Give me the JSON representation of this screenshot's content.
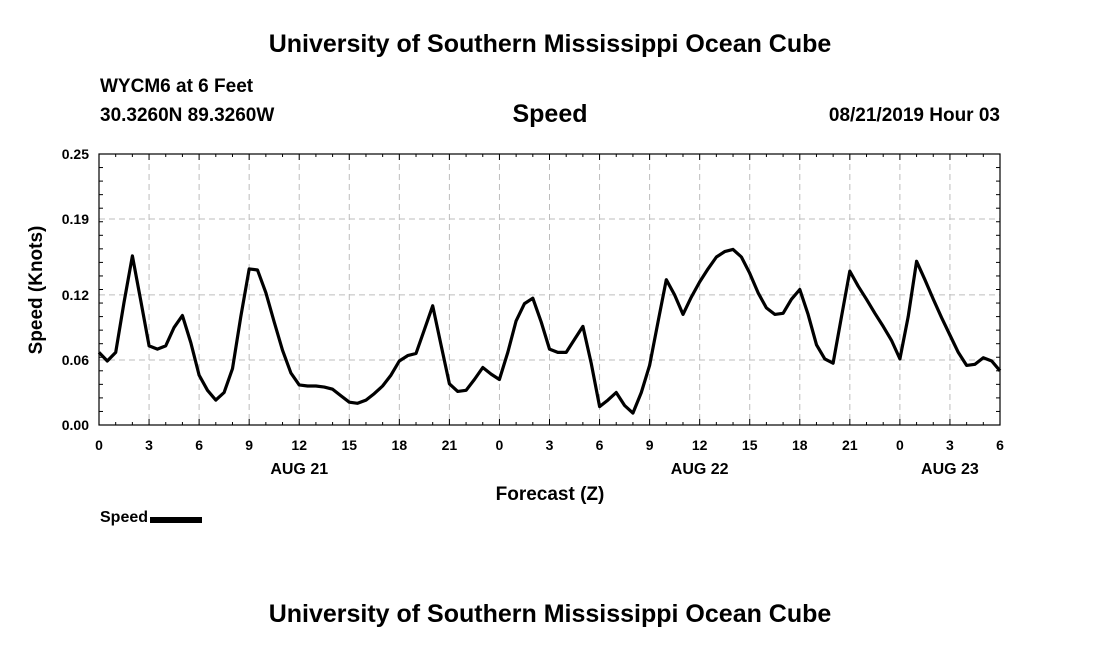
{
  "header": {
    "title": "University of Southern Mississippi Ocean Cube",
    "station": "WYCM6 at 6 Feet",
    "coords": "30.3260N 89.3260W",
    "variable": "Speed",
    "datetime": "08/21/2019 Hour 03"
  },
  "footer": {
    "title": "University of Southern Mississippi Ocean Cube"
  },
  "legend": {
    "label": "Speed",
    "color": "#000000"
  },
  "chart_data": {
    "type": "line",
    "title": "Speed",
    "xlabel": "Forecast (Z)",
    "ylabel": "Speed (Knots)",
    "xlim": [
      0,
      54
    ],
    "ylim": [
      0,
      0.25
    ],
    "grid": true,
    "xticks": [
      0,
      3,
      6,
      9,
      12,
      15,
      18,
      21,
      24,
      27,
      30,
      33,
      36,
      39,
      42,
      45,
      48,
      51,
      54
    ],
    "xtick_labels": [
      "0",
      "3",
      "6",
      "9",
      "12",
      "15",
      "18",
      "21",
      "0",
      "3",
      "6",
      "9",
      "12",
      "15",
      "18",
      "21",
      "0",
      "3",
      "6"
    ],
    "day_labels": [
      {
        "x": 12,
        "label": "AUG 21"
      },
      {
        "x": 36,
        "label": "AUG 22"
      },
      {
        "x": 51,
        "label": "AUG 23"
      }
    ],
    "yticks": [
      0,
      0.06,
      0.12,
      0.19,
      0.25
    ],
    "ytick_labels": [
      "0.00",
      "0.06",
      "0.12",
      "0.19",
      "0.25"
    ],
    "series": [
      {
        "name": "Speed",
        "color": "#000000",
        "x": [
          0,
          0.5,
          1,
          1.5,
          2,
          2.5,
          3,
          3.5,
          4,
          4.5,
          5,
          5.5,
          6,
          6.5,
          7,
          7.5,
          8,
          8.5,
          9,
          9.5,
          10,
          10.5,
          11,
          11.5,
          12,
          12.5,
          13,
          13.5,
          14,
          14.5,
          15,
          15.5,
          16,
          16.5,
          17,
          17.5,
          18,
          18.5,
          19,
          19.5,
          20,
          20.5,
          21,
          21.5,
          22,
          22.5,
          23,
          23.5,
          24,
          24.5,
          25,
          25.5,
          26,
          26.5,
          27,
          27.5,
          28,
          28.5,
          29,
          29.5,
          30,
          30.5,
          31,
          31.5,
          32,
          32.5,
          33,
          33.5,
          34,
          34.5,
          35,
          35.5,
          36,
          36.5,
          37,
          37.5,
          38,
          38.5,
          39,
          39.5,
          40,
          40.5,
          41,
          41.5,
          42,
          42.5,
          43,
          43.5,
          44,
          44.5,
          45,
          45.5,
          46,
          46.5,
          47,
          47.5,
          48,
          48.5,
          49,
          49.5,
          50,
          50.5,
          51,
          51.5,
          52,
          52.5,
          53,
          53.5,
          54
        ],
        "values": [
          0.067,
          0.059,
          0.067,
          0.113,
          0.156,
          0.115,
          0.073,
          0.07,
          0.073,
          0.09,
          0.101,
          0.076,
          0.046,
          0.032,
          0.023,
          0.03,
          0.052,
          0.1,
          0.144,
          0.143,
          0.122,
          0.095,
          0.069,
          0.048,
          0.037,
          0.036,
          0.036,
          0.035,
          0.033,
          0.027,
          0.021,
          0.02,
          0.023,
          0.029,
          0.036,
          0.046,
          0.059,
          0.064,
          0.066,
          0.088,
          0.11,
          0.074,
          0.038,
          0.031,
          0.032,
          0.042,
          0.053,
          0.047,
          0.042,
          0.067,
          0.096,
          0.112,
          0.117,
          0.095,
          0.07,
          0.067,
          0.067,
          0.079,
          0.091,
          0.057,
          0.017,
          0.023,
          0.03,
          0.018,
          0.011,
          0.03,
          0.055,
          0.095,
          0.134,
          0.12,
          0.102,
          0.118,
          0.132,
          0.144,
          0.155,
          0.16,
          0.162,
          0.155,
          0.14,
          0.122,
          0.108,
          0.102,
          0.103,
          0.116,
          0.125,
          0.102,
          0.074,
          0.061,
          0.057,
          0.1,
          0.142,
          0.128,
          0.116,
          0.103,
          0.091,
          0.078,
          0.061,
          0.1,
          0.151,
          0.134,
          0.116,
          0.099,
          0.083,
          0.067,
          0.055,
          0.056,
          0.062,
          0.059,
          0.05
        ]
      }
    ]
  }
}
